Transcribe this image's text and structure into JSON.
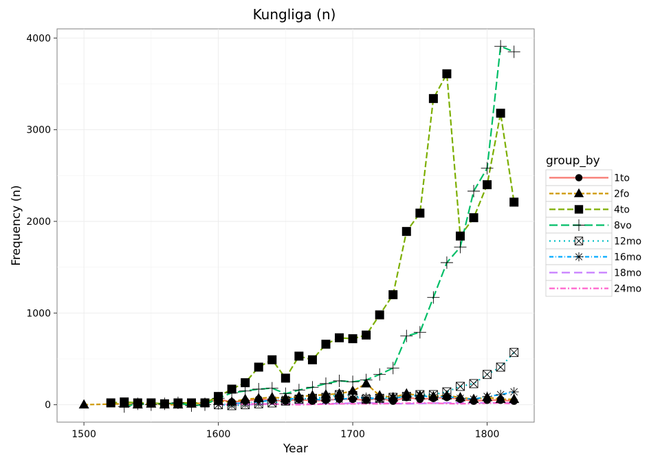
{
  "chart_data": {
    "type": "line",
    "title": "Kungliga (n)",
    "xlabel": "Year",
    "ylabel": "Frequency (n)",
    "xlim": [
      1480,
      1835
    ],
    "ylim": [
      -190,
      4100
    ],
    "x_ticks": [
      1500,
      1600,
      1700,
      1800
    ],
    "y_ticks": [
      0,
      1000,
      2000,
      3000,
      4000
    ],
    "grid": true,
    "legend_position": "right",
    "legend_title": "group_by",
    "series": [
      {
        "name": "1to",
        "color": "#F8766D",
        "dash": "",
        "marker": "circle",
        "x": [
          1560,
          1570,
          1580,
          1590,
          1600,
          1610,
          1620,
          1630,
          1640,
          1650,
          1660,
          1670,
          1680,
          1690,
          1700,
          1710,
          1720,
          1730,
          1740,
          1750,
          1760,
          1770,
          1780,
          1790,
          1800,
          1810,
          1820
        ],
        "y": [
          10,
          20,
          10,
          20,
          60,
          30,
          40,
          60,
          50,
          40,
          60,
          40,
          50,
          60,
          60,
          50,
          70,
          40,
          80,
          60,
          70,
          80,
          60,
          40,
          50,
          50,
          40
        ]
      },
      {
        "name": "2fo",
        "color": "#CD9600",
        "dash": "6,3",
        "marker": "triangle",
        "x": [
          1500,
          1530,
          1540,
          1550,
          1560,
          1570,
          1580,
          1590,
          1600,
          1610,
          1620,
          1630,
          1640,
          1650,
          1660,
          1670,
          1680,
          1690,
          1700,
          1710,
          1720,
          1730,
          1740,
          1750,
          1760,
          1770,
          1780,
          1790,
          1800,
          1810,
          1820
        ],
        "y": [
          0,
          10,
          0,
          10,
          0,
          0,
          10,
          20,
          40,
          30,
          60,
          70,
          80,
          70,
          90,
          100,
          110,
          120,
          150,
          230,
          100,
          80,
          120,
          100,
          90,
          100,
          80,
          60,
          80,
          60,
          60
        ]
      },
      {
        "name": "4to",
        "color": "#7CAE00",
        "dash": "9,4",
        "marker": "square",
        "x": [
          1520,
          1530,
          1540,
          1550,
          1560,
          1570,
          1580,
          1590,
          1600,
          1610,
          1620,
          1630,
          1640,
          1650,
          1660,
          1670,
          1680,
          1690,
          1700,
          1710,
          1720,
          1730,
          1740,
          1750,
          1760,
          1770,
          1780,
          1790,
          1800,
          1810,
          1820
        ],
        "y": [
          20,
          30,
          20,
          20,
          10,
          20,
          20,
          20,
          90,
          170,
          240,
          410,
          490,
          290,
          530,
          490,
          660,
          730,
          720,
          760,
          980,
          1200,
          1890,
          2090,
          3340,
          3610,
          1840,
          2040,
          2400,
          3180,
          2210
        ]
      },
      {
        "name": "8vo",
        "color": "#00BE67",
        "dash": "12,5",
        "marker": "plus",
        "x": [
          1530,
          1540,
          1550,
          1560,
          1570,
          1580,
          1590,
          1600,
          1610,
          1620,
          1630,
          1640,
          1650,
          1660,
          1670,
          1680,
          1690,
          1700,
          1710,
          1720,
          1730,
          1740,
          1750,
          1760,
          1770,
          1780,
          1790,
          1800,
          1810,
          1820
        ],
        "y": [
          -20,
          10,
          0,
          10,
          20,
          -10,
          0,
          70,
          130,
          150,
          170,
          180,
          120,
          160,
          190,
          230,
          260,
          250,
          270,
          330,
          400,
          750,
          790,
          1170,
          1550,
          1720,
          2330,
          2580,
          3910,
          3850
        ]
      },
      {
        "name": "12mo",
        "color": "#00BFC4",
        "dash": "2,5",
        "marker": "boxx",
        "x": [
          1600,
          1610,
          1620,
          1630,
          1640,
          1650,
          1660,
          1670,
          1680,
          1690,
          1700,
          1710,
          1720,
          1730,
          1740,
          1750,
          1760,
          1770,
          1780,
          1790,
          1800,
          1810,
          1820
        ],
        "y": [
          0,
          -10,
          0,
          10,
          20,
          40,
          60,
          70,
          80,
          110,
          100,
          60,
          70,
          80,
          90,
          110,
          110,
          140,
          200,
          230,
          330,
          410,
          570
        ]
      },
      {
        "name": "16mo",
        "color": "#00A9FF",
        "dash": "6,3,1,3",
        "marker": "star",
        "x": [
          1600,
          1610,
          1620,
          1630,
          1640,
          1650,
          1660,
          1670,
          1680,
          1690,
          1700,
          1710,
          1720,
          1730,
          1740,
          1750,
          1760,
          1770,
          1780,
          1790,
          1800,
          1810,
          1820
        ],
        "y": [
          0,
          10,
          20,
          30,
          50,
          60,
          70,
          60,
          50,
          60,
          70,
          80,
          60,
          70,
          90,
          100,
          80,
          90,
          70,
          60,
          90,
          110,
          140
        ]
      },
      {
        "name": "18mo",
        "color": "#C77CFF",
        "dash": "12,6",
        "marker": "none",
        "x": [
          1620,
          1650,
          1680,
          1710,
          1740,
          1770,
          1800,
          1820
        ],
        "y": [
          0,
          10,
          10,
          20,
          10,
          20,
          20,
          20
        ]
      },
      {
        "name": "24mo",
        "color": "#FF61CC",
        "dash": "8,3,2,3",
        "marker": "none",
        "x": [
          1600,
          1630,
          1660,
          1690,
          1720,
          1750,
          1780,
          1810,
          1820
        ],
        "y": [
          0,
          10,
          0,
          10,
          10,
          20,
          10,
          20,
          10
        ]
      }
    ]
  }
}
